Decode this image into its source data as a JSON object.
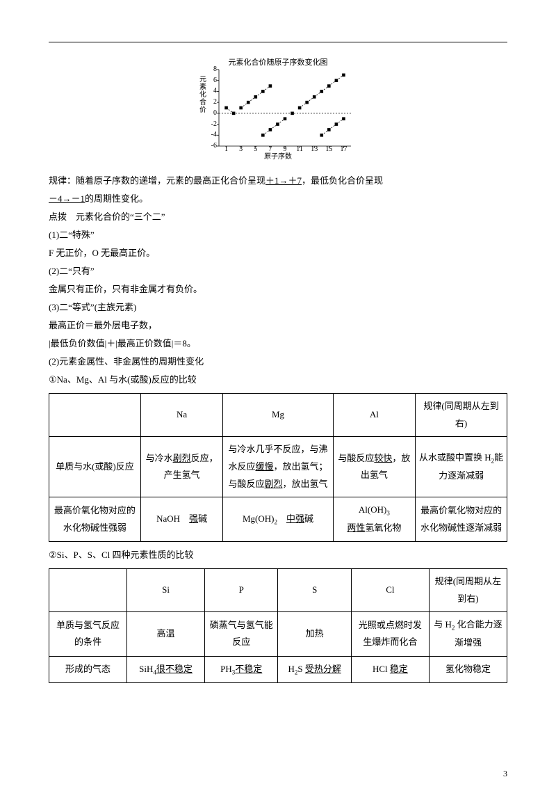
{
  "chart": {
    "title": "元素化合价随原子序数变化图",
    "ylabel": "元素化合价",
    "xlabel": "原子序数",
    "yticks": [
      {
        "v": -6,
        "label": "-6"
      },
      {
        "v": -4,
        "label": "-4"
      },
      {
        "v": -2,
        "label": "-2"
      },
      {
        "v": 0,
        "label": "0"
      },
      {
        "v": 2,
        "label": "2"
      },
      {
        "v": 4,
        "label": "4"
      },
      {
        "v": 6,
        "label": "6"
      },
      {
        "v": 8,
        "label": "8"
      }
    ],
    "xticks": [
      {
        "v": 1,
        "label": "1"
      },
      {
        "v": 3,
        "label": "3"
      },
      {
        "v": 5,
        "label": "5"
      },
      {
        "v": 7,
        "label": "7"
      },
      {
        "v": 9,
        "label": "9"
      },
      {
        "v": 11,
        "label": "11"
      },
      {
        "v": 13,
        "label": "13"
      },
      {
        "v": 15,
        "label": "15"
      },
      {
        "v": 17,
        "label": "17"
      }
    ],
    "ylim": [
      -6,
      8
    ],
    "xlim": [
      0,
      18
    ],
    "series": [
      {
        "pts": [
          [
            1,
            1
          ],
          [
            2,
            0
          ]
        ]
      },
      {
        "pts": [
          [
            3,
            1
          ],
          [
            4,
            2
          ],
          [
            5,
            3
          ],
          [
            6,
            4
          ],
          [
            7,
            5
          ]
        ]
      },
      {
        "pts": [
          [
            6,
            -4
          ],
          [
            7,
            -3
          ],
          [
            8,
            -2
          ],
          [
            9,
            -1
          ]
        ]
      },
      {
        "pts": [
          [
            10,
            0
          ]
        ]
      },
      {
        "pts": [
          [
            11,
            1
          ],
          [
            12,
            2
          ],
          [
            13,
            3
          ],
          [
            14,
            4
          ],
          [
            15,
            5
          ],
          [
            16,
            6
          ],
          [
            17,
            7
          ]
        ]
      },
      {
        "pts": [
          [
            14,
            -4
          ],
          [
            15,
            -3
          ],
          [
            16,
            -2
          ],
          [
            17,
            -1
          ]
        ]
      }
    ],
    "colors": {
      "axis": "#000000",
      "marker": "#000000",
      "grid": "#000000"
    },
    "marker_size": 2.3
  },
  "text": {
    "p1a": "规律：随着原子序数的递增，元素的最高正化合价呈现",
    "p1u": "＋1→＋7",
    "p1b": "，最低负化合价呈现",
    "p2u": "－4→－1",
    "p2b": "的周期性变化。",
    "p3": "点拨　元素化合价的“三个二”",
    "p4": "(1)二“特殊”",
    "p5": "F 无正价，O 无最高正价。",
    "p6": "(2)二“只有”",
    "p7": "金属只有正价，只有非金属才有负价。",
    "p8": "(3)二“等式”(主族元素)",
    "p9": "最高正价＝最外层电子数，",
    "p10": "|最低负价数值|＋|最高正价数值|＝8。",
    "p11": "(2)元素金属性、非金属性的周期性变化",
    "p12": "①Na、Mg、Al 与水(或酸)反应的比较",
    "p13": "②Si、P、S、Cl 四种元素性质的比较"
  },
  "table1": {
    "header": [
      "",
      "Na",
      "Mg",
      "Al",
      "规律(同周期从左到右)"
    ],
    "rows": [
      {
        "label": "单质与水(或酸)反应",
        "na_a": "与冷水",
        "na_u": "剧烈",
        "na_b": "反应，产生氢气",
        "mg_a": "与冷水几乎不反应，与沸水反应",
        "mg_u1": "缓慢",
        "mg_b": "，放出氢气；与酸反应",
        "mg_u2": "剧烈",
        "mg_c": "，放出氢气",
        "al_a": "与酸反应",
        "al_u": "较快",
        "al_b": "，放出氢气",
        "rule_a": "从水或酸中置换 H",
        "rule_sub": "2",
        "rule_b": "能力逐渐减弱"
      },
      {
        "label": "最高价氧化物对应的水化物碱性强弱",
        "na_a": "NaOH　",
        "na_u": "强",
        "na_b": "碱",
        "mg_a": "Mg(OH)",
        "mg_sub": "2",
        "mg_sp": "　",
        "mg_u1": "中强",
        "mg_b": "碱",
        "al_a": "Al(OH)",
        "al_sub": "3",
        "al_br": "",
        "al_u": "两性",
        "al_b": "氢氧化物",
        "rule": "最高价氧化物对应的水化物碱性逐渐减弱"
      }
    ]
  },
  "table2": {
    "header": [
      "",
      "Si",
      "P",
      "S",
      "Cl",
      "规律(同周期从左到右)"
    ],
    "rows": [
      {
        "label": "单质与氢气反应的条件",
        "si": "高温",
        "p": "磷蒸气与氢气能反应",
        "s": "加热",
        "cl": "光照或点燃时发生爆炸而化合",
        "rule_a": "与 H",
        "rule_sub": "2",
        "rule_b": " 化合能力逐渐增强"
      },
      {
        "label": "形成的气态",
        "si_a": "SiH",
        "si_sub": "4",
        "si_u": "很不稳定",
        "p_a": "PH",
        "p_sub": "3",
        "p_u": "不稳定",
        "s_a": "H",
        "s_sub": "2",
        "s_b": "S ",
        "s_u": "受热分解",
        "cl_a": "HCl ",
        "cl_u": "稳定",
        "rule": "氢化物稳定"
      }
    ]
  },
  "pagenum": "3",
  "layout": {
    "t1_widths": [
      "20%",
      "18%",
      "24%",
      "18%",
      "20%"
    ],
    "t2_widths": [
      "17%",
      "17%",
      "16%",
      "16%",
      "17%",
      "17%"
    ]
  }
}
